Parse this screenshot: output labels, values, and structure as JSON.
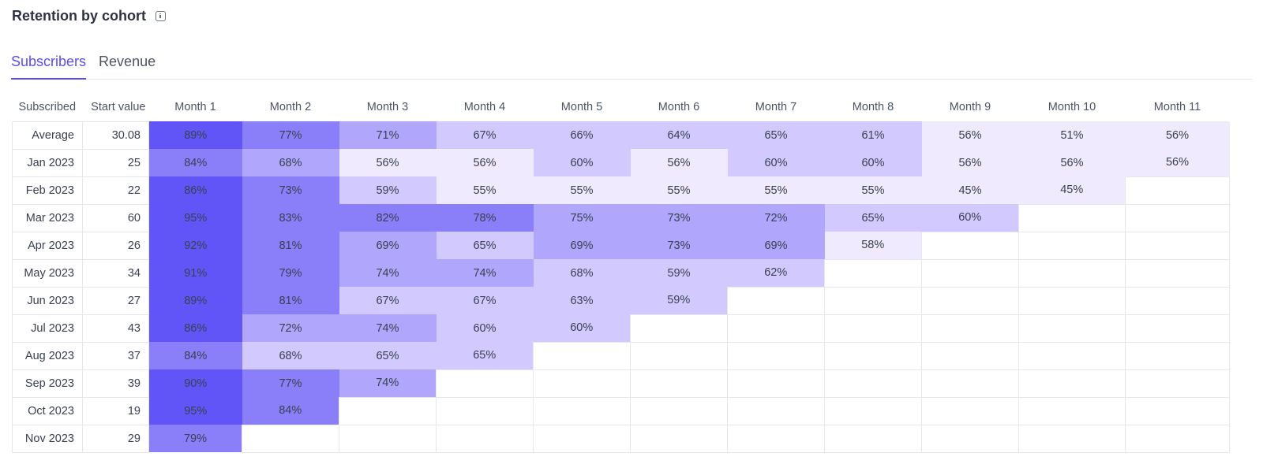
{
  "header": {
    "title": "Retention by cohort",
    "info_icon": "info-icon"
  },
  "tabs": [
    {
      "label": "Subscribers",
      "active": true
    },
    {
      "label": "Revenue",
      "active": false
    }
  ],
  "table": {
    "columns": [
      "Subscribed",
      "Start value",
      "Month 1",
      "Month 2",
      "Month 3",
      "Month 4",
      "Month 5",
      "Month 6",
      "Month 7",
      "Month 8",
      "Month 9",
      "Month 10",
      "Month 11"
    ],
    "rows": [
      {
        "label": "Average",
        "start": "30.08",
        "cells": [
          [
            89,
            5
          ],
          [
            77,
            4
          ],
          [
            71,
            3
          ],
          [
            67,
            2
          ],
          [
            66,
            2
          ],
          [
            64,
            2
          ],
          [
            65,
            2
          ],
          [
            61,
            2
          ],
          [
            56,
            1
          ],
          [
            51,
            1
          ],
          [
            56,
            1
          ]
        ]
      },
      {
        "label": "Jan 2023",
        "start": "25",
        "cells": [
          [
            84,
            4
          ],
          [
            68,
            3
          ],
          [
            56,
            1
          ],
          [
            56,
            1
          ],
          [
            60,
            2
          ],
          [
            56,
            1
          ],
          [
            60,
            2
          ],
          [
            60,
            2
          ],
          [
            56,
            1
          ],
          [
            56,
            1
          ],
          [
            56,
            1
          ]
        ]
      },
      {
        "label": "Feb 2023",
        "start": "22",
        "cells": [
          [
            86,
            5
          ],
          [
            73,
            4
          ],
          [
            59,
            2
          ],
          [
            55,
            1
          ],
          [
            55,
            1
          ],
          [
            55,
            1
          ],
          [
            55,
            1
          ],
          [
            55,
            1
          ],
          [
            45,
            1
          ],
          [
            45,
            1
          ]
        ]
      },
      {
        "label": "Mar 2023",
        "start": "60",
        "cells": [
          [
            95,
            5
          ],
          [
            83,
            4
          ],
          [
            82,
            4
          ],
          [
            78,
            4
          ],
          [
            75,
            3
          ],
          [
            73,
            3
          ],
          [
            72,
            3
          ],
          [
            65,
            2
          ],
          [
            60,
            2
          ]
        ]
      },
      {
        "label": "Apr 2023",
        "start": "26",
        "cells": [
          [
            92,
            5
          ],
          [
            81,
            4
          ],
          [
            69,
            3
          ],
          [
            65,
            2
          ],
          [
            69,
            3
          ],
          [
            73,
            3
          ],
          [
            69,
            3
          ],
          [
            58,
            1
          ]
        ]
      },
      {
        "label": "May 2023",
        "start": "34",
        "cells": [
          [
            91,
            5
          ],
          [
            79,
            4
          ],
          [
            74,
            3
          ],
          [
            74,
            3
          ],
          [
            68,
            2
          ],
          [
            59,
            2
          ],
          [
            62,
            2
          ]
        ]
      },
      {
        "label": "Jun 2023",
        "start": "27",
        "cells": [
          [
            89,
            5
          ],
          [
            81,
            4
          ],
          [
            67,
            2
          ],
          [
            67,
            2
          ],
          [
            63,
            2
          ],
          [
            59,
            2
          ]
        ]
      },
      {
        "label": "Jul 2023",
        "start": "43",
        "cells": [
          [
            86,
            5
          ],
          [
            72,
            3
          ],
          [
            74,
            3
          ],
          [
            60,
            2
          ],
          [
            60,
            2
          ]
        ]
      },
      {
        "label": "Aug 2023",
        "start": "37",
        "cells": [
          [
            84,
            4
          ],
          [
            68,
            2
          ],
          [
            65,
            2
          ],
          [
            65,
            2
          ]
        ]
      },
      {
        "label": "Sep 2023",
        "start": "39",
        "cells": [
          [
            90,
            5
          ],
          [
            77,
            4
          ],
          [
            74,
            3
          ]
        ]
      },
      {
        "label": "Oct 2023",
        "start": "19",
        "cells": [
          [
            95,
            5
          ],
          [
            84,
            4
          ]
        ]
      },
      {
        "label": "Nov 2023",
        "start": "29",
        "cells": [
          [
            79,
            4
          ]
        ]
      }
    ]
  }
}
